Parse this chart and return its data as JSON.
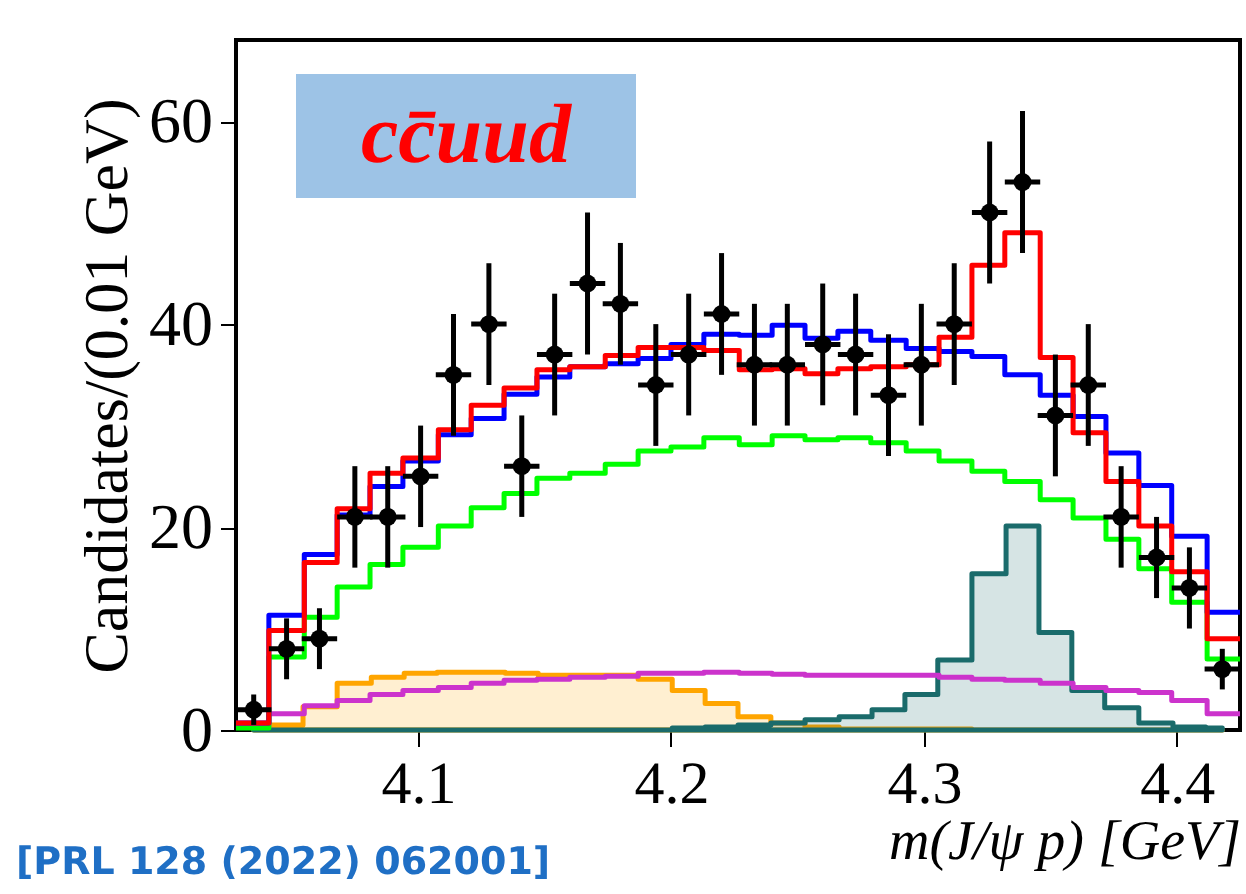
{
  "chart_data": {
    "type": "histogram",
    "xlabel": "m(J/ψ p) [GeV]",
    "ylabel": "Candidates/(0.01 GeV)",
    "annotations": [
      "cc̄uud",
      "[PRL 128 (2022) 062001]"
    ],
    "xlim": [
      4.028,
      4.425
    ],
    "xticks": [
      4.1,
      4.2,
      4.3,
      4.4
    ],
    "ylim": [
      0,
      68
    ],
    "yticks": [
      0,
      20,
      40,
      60
    ],
    "bins": [
      4.028,
      4.041,
      4.055,
      4.068,
      4.081,
      4.094,
      4.108,
      4.121,
      4.134,
      4.147,
      4.16,
      4.174,
      4.187,
      4.2,
      4.213,
      4.227,
      4.24,
      4.253,
      4.266,
      4.279,
      4.293,
      4.306,
      4.319,
      4.332,
      4.346,
      4.359,
      4.372,
      4.385,
      4.398,
      4.412,
      4.425
    ],
    "series": [
      {
        "type": "area",
        "color": "#ffa500",
        "x": [
          4.035,
          4.048,
          4.061,
          4.075,
          4.088,
          4.101,
          4.114,
          4.128,
          4.141,
          4.154,
          4.167,
          4.18,
          4.194,
          4.207,
          4.22,
          4.233,
          4.246,
          4.26,
          4.273,
          4.286,
          4.299,
          4.312,
          4.326,
          4.339,
          4.352,
          4.365,
          4.378,
          4.392,
          4.405,
          4.418
        ],
        "values": [
          0.2,
          0.5,
          2.3,
          4.6,
          5.2,
          5.6,
          5.7,
          5.7,
          5.6,
          5.4,
          5.4,
          5.4,
          5.0,
          3.9,
          2.6,
          1.3,
          0.7,
          0.3,
          0.1,
          0.1,
          0.1,
          0.1,
          0,
          0,
          0,
          0,
          0,
          0,
          0,
          0
        ]
      },
      {
        "type": "area",
        "color": "#1a6b6b",
        "x": [
          4.035,
          4.048,
          4.061,
          4.075,
          4.088,
          4.101,
          4.114,
          4.128,
          4.141,
          4.154,
          4.167,
          4.18,
          4.194,
          4.207,
          4.22,
          4.233,
          4.246,
          4.26,
          4.273,
          4.286,
          4.299,
          4.312,
          4.326,
          4.339,
          4.352,
          4.365,
          4.378,
          4.392,
          4.405,
          4.418
        ],
        "values": [
          0,
          0,
          0,
          0,
          0,
          0,
          0,
          0,
          0,
          0,
          0,
          0,
          0,
          0.2,
          0.3,
          0.5,
          0.7,
          1.0,
          1.3,
          2.0,
          3.5,
          6.9,
          15.4,
          20.1,
          9.6,
          3.9,
          2.2,
          0.7,
          0.3,
          0.2
        ]
      },
      {
        "color": "#cc33cc",
        "values": [
          0.3,
          1.6,
          2.4,
          2.9,
          3.5,
          3.9,
          4.2,
          4.6,
          4.9,
          5.0,
          5.2,
          5.3,
          5.6,
          5.6,
          5.7,
          5.6,
          5.5,
          5.4,
          5.4,
          5.4,
          5.4,
          5.2,
          5.0,
          4.9,
          4.6,
          4.2,
          3.9,
          3.7,
          2.9,
          1.6
        ]
      },
      {
        "color": "#00ff00",
        "values": [
          0.2,
          7.2,
          11.1,
          14.1,
          16.3,
          18.0,
          20.1,
          21.9,
          23.3,
          24.8,
          25.3,
          26.2,
          27.5,
          27.9,
          28.8,
          28.1,
          29.0,
          28.6,
          28.8,
          28.3,
          27.5,
          26.5,
          25.5,
          24.5,
          22.7,
          20.9,
          18.8,
          15.9,
          12.6,
          7.0
        ]
      },
      {
        "color": "#0000ff",
        "values": [
          0.7,
          11.3,
          17.3,
          21.2,
          24.0,
          26.5,
          29.1,
          30.7,
          33.1,
          34.8,
          35.8,
          36.1,
          36.6,
          38.0,
          39.0,
          38.9,
          39.9,
          38.6,
          39.3,
          38.4,
          37.6,
          37.3,
          36.8,
          35.0,
          33.0,
          30.9,
          27.3,
          24.1,
          19.1,
          11.6
        ]
      },
      {
        "color": "#ff0000",
        "values": [
          0.7,
          9.8,
          16.5,
          21.8,
          25.3,
          26.8,
          29.6,
          32.0,
          33.7,
          35.5,
          35.8,
          36.9,
          37.7,
          37.7,
          37.4,
          35.5,
          35.6,
          35.1,
          35.6,
          35.8,
          36.0,
          38.7,
          45.8,
          49.0,
          36.7,
          29.3,
          24.5,
          20.1,
          15.6,
          9.0
        ]
      },
      {
        "type": "scatter",
        "color": "#000000",
        "marker": "circle",
        "x": [
          4.035,
          4.048,
          4.061,
          4.075,
          4.088,
          4.101,
          4.114,
          4.128,
          4.141,
          4.154,
          4.167,
          4.18,
          4.194,
          4.207,
          4.22,
          4.233,
          4.246,
          4.26,
          4.273,
          4.286,
          4.299,
          4.312,
          4.326,
          4.339,
          4.352,
          4.365,
          4.378,
          4.392,
          4.405,
          4.418
        ],
        "values": [
          2,
          8,
          9,
          21,
          21,
          25,
          35,
          40,
          26,
          37,
          44,
          42,
          34,
          37,
          41,
          36,
          36,
          38,
          37,
          33,
          36,
          40,
          51,
          54,
          31,
          34,
          21,
          17,
          14,
          6
        ],
        "errors": [
          1.5,
          3,
          3,
          5,
          5,
          5,
          6,
          6,
          5,
          6,
          7,
          6,
          6,
          6,
          6,
          6,
          6,
          6,
          6,
          6,
          6,
          6,
          7,
          7,
          6,
          6,
          5,
          4,
          4,
          2
        ],
        "xerrors": [
          0.007,
          0.007,
          0.007,
          0.007,
          0.007,
          0.007,
          0.007,
          0.007,
          0.007,
          0.007,
          0.007,
          0.007,
          0.007,
          0.007,
          0.007,
          0.007,
          0.007,
          0.007,
          0.007,
          0.007,
          0.007,
          0.007,
          0.007,
          0.007,
          0.007,
          0.007,
          0.007,
          0.007,
          0.007,
          0.007
        ]
      }
    ]
  }
}
